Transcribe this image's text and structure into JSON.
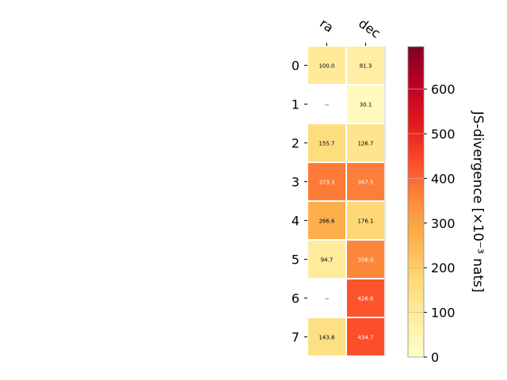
{
  "chart_data": {
    "type": "heatmap",
    "columns": [
      "ra",
      "dec"
    ],
    "rows": [
      "0",
      "1",
      "2",
      "3",
      "4",
      "5",
      "6",
      "7"
    ],
    "values": [
      [
        100.0,
        81.3
      ],
      [
        null,
        30.1
      ],
      [
        155.7,
        126.7
      ],
      [
        373.3,
        367.5
      ],
      [
        266.6,
        176.1
      ],
      [
        94.7,
        356.0
      ],
      [
        null,
        426.6
      ],
      [
        143.8,
        434.7
      ]
    ],
    "cell_labels": [
      [
        "100.0",
        "81.3"
      ],
      [
        "--",
        "30.1"
      ],
      [
        "155.7",
        "126.7"
      ],
      [
        "373.3",
        "367.5"
      ],
      [
        "266.6",
        "176.1"
      ],
      [
        "94.7",
        "356.0"
      ],
      [
        "--",
        "426.6"
      ],
      [
        "143.8",
        "434.7"
      ]
    ],
    "colorbar": {
      "label": "JS-divergence [×10⁻³ nats]",
      "range": [
        0,
        695
      ],
      "ticks": [
        0,
        100,
        200,
        300,
        400,
        500,
        600
      ],
      "colormap": "YlOrRd",
      "colors": [
        "#ffffcc",
        "#ffeda0",
        "#fed976",
        "#feb24c",
        "#fd8d3c",
        "#fc4e2a",
        "#e31a1c",
        "#bd0026",
        "#800026"
      ]
    },
    "grid": false
  }
}
